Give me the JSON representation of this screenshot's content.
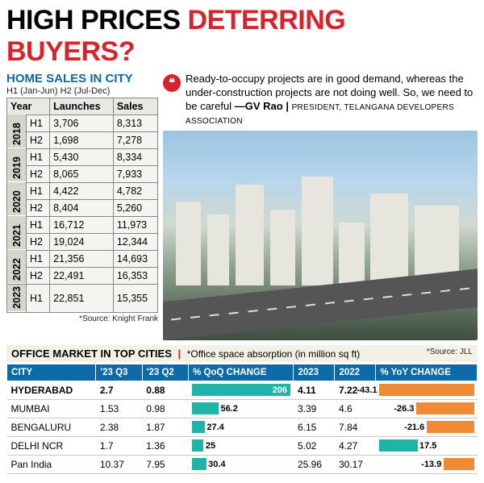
{
  "headline": {
    "black": "HIGH PRICES ",
    "red": "DETERRING BUYERS?"
  },
  "sales_table": {
    "title": "HOME SALES IN CITY",
    "subtitle": "H1 (Jan-Jun) H2 (Jul-Dec)",
    "headers": [
      "Year",
      "",
      "Launches",
      "Sales"
    ],
    "rows": [
      {
        "year": "2018",
        "half": "H1",
        "launches": "3,706",
        "sales": "8,313"
      },
      {
        "year": "",
        "half": "H2",
        "launches": "1,698",
        "sales": "7,278"
      },
      {
        "year": "2019",
        "half": "H1",
        "launches": "5,430",
        "sales": "8,334"
      },
      {
        "year": "",
        "half": "H2",
        "launches": "8,065",
        "sales": "7,933"
      },
      {
        "year": "2020",
        "half": "H1",
        "launches": "4,422",
        "sales": "4,782"
      },
      {
        "year": "",
        "half": "H2",
        "launches": "8,404",
        "sales": "5,260"
      },
      {
        "year": "2021",
        "half": "H1",
        "launches": "16,712",
        "sales": "11,973"
      },
      {
        "year": "",
        "half": "H2",
        "launches": "19,024",
        "sales": "12,344"
      },
      {
        "year": "2022",
        "half": "H1",
        "launches": "21,356",
        "sales": "14,693"
      },
      {
        "year": "",
        "half": "H2",
        "launches": "22,491",
        "sales": "16,353"
      },
      {
        "year": "2023",
        "half": "H1",
        "launches": "22,851",
        "sales": "15,355"
      }
    ],
    "source": "*Source: Knight Frank"
  },
  "quote": {
    "text": "Ready-to-occupy projects are in good demand, whereas the under-construction projects are not doing well. So, we need to be careful",
    "author": "—GV Rao",
    "title": "PRESIDENT, TELANGANA DEVELOPERS ASSOCIATION"
  },
  "office": {
    "title": "OFFICE MARKET IN TOP CITIES",
    "note": "*Office space absorption (in million sq ft)",
    "source": "*Source: JLL",
    "headers": [
      "CITY",
      "'23 Q3",
      "'23 Q2",
      "% QoQ CHANGE",
      "2023",
      "2022",
      "% YoY CHANGE"
    ],
    "qoq_max": 206,
    "yoy_max": 43.1,
    "colors": {
      "teal": "#1fb3aa",
      "orange": "#ef8b34",
      "header_bg": "#0b6aa7"
    },
    "rows": [
      {
        "city": "HYDERABAD",
        "q3": "2.7",
        "q2": "0.88",
        "qoq": 206,
        "y2023": "4.11",
        "y2022": "7.22",
        "yoy": -43.1,
        "highlight": true
      },
      {
        "city": "MUMBAI",
        "q3": "1.53",
        "q2": "0.98",
        "qoq": 56.2,
        "y2023": "3.39",
        "y2022": "4.6",
        "yoy": -26.3,
        "highlight": false
      },
      {
        "city": "BENGALURU",
        "q3": "2.38",
        "q2": "1.87",
        "qoq": 27.4,
        "y2023": "6.15",
        "y2022": "7.84",
        "yoy": -21.6,
        "highlight": false
      },
      {
        "city": "DELHI NCR",
        "q3": "1.7",
        "q2": "1.36",
        "qoq": 25,
        "y2023": "5.02",
        "y2022": "4.27",
        "yoy": 17.5,
        "highlight": false
      },
      {
        "city": "Pan India",
        "q3": "10.37",
        "q2": "7.95",
        "qoq": 30.4,
        "y2023": "25.96",
        "y2022": "30.17",
        "yoy": -13.9,
        "highlight": false
      }
    ]
  }
}
